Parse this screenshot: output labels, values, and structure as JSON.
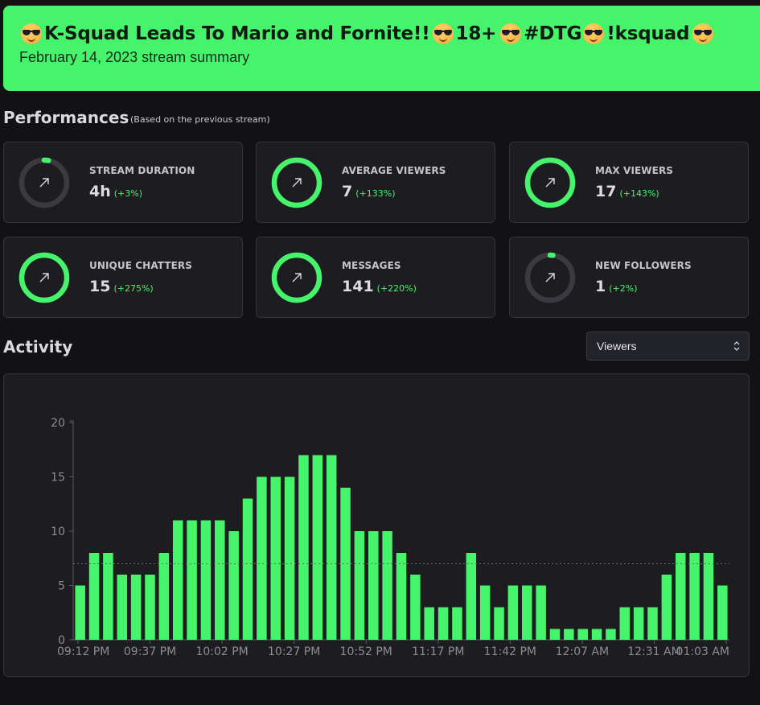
{
  "banner": {
    "title_parts": [
      "K-Squad Leads To Mario and Fornite!!",
      "18+",
      "#DTG",
      "!ksquad"
    ],
    "subtitle": "February 14, 2023 stream summary",
    "accent_color": "#45f46a",
    "emoji_icon": "sunglasses-face-emoji"
  },
  "performances": {
    "heading": "Performances",
    "note": "(Based on the previous stream)",
    "cards": [
      {
        "label": "STREAM DURATION",
        "value": "4h",
        "delta": "(+3%)",
        "ring_fill": 0.03,
        "icon": "arrow-up-right-icon"
      },
      {
        "label": "AVERAGE VIEWERS",
        "value": "7",
        "delta": "(+133%)",
        "ring_fill": 1.0,
        "icon": "arrow-up-right-icon"
      },
      {
        "label": "MAX VIEWERS",
        "value": "17",
        "delta": "(+143%)",
        "ring_fill": 1.0,
        "icon": "arrow-up-right-icon"
      },
      {
        "label": "UNIQUE CHATTERS",
        "value": "15",
        "delta": "(+275%)",
        "ring_fill": 1.0,
        "icon": "arrow-up-right-icon"
      },
      {
        "label": "MESSAGES",
        "value": "141",
        "delta": "(+220%)",
        "ring_fill": 1.0,
        "icon": "arrow-up-right-icon"
      },
      {
        "label": "NEW FOLLOWERS",
        "value": "1",
        "delta": "(+2%)",
        "ring_fill": 0.02,
        "icon": "arrow-up-right-icon"
      }
    ]
  },
  "activity": {
    "heading": "Activity",
    "select_value": "Viewers"
  },
  "chart_data": {
    "type": "bar",
    "title": "",
    "xlabel": "",
    "ylabel": "",
    "ylim": [
      0,
      20
    ],
    "yticks": [
      0,
      5,
      10,
      15,
      20
    ],
    "xtick_labels": [
      "09:12 PM",
      "09:37 PM",
      "10:02 PM",
      "10:27 PM",
      "10:52 PM",
      "11:17 PM",
      "11:42 PM",
      "12:07 AM",
      "12:31 AM",
      "01:03 AM"
    ],
    "values": [
      5,
      8,
      8,
      6,
      6,
      6,
      8,
      11,
      11,
      11,
      11,
      10,
      13,
      15,
      15,
      15,
      17,
      17,
      17,
      14,
      10,
      10,
      10,
      8,
      6,
      3,
      3,
      3,
      8,
      5,
      3,
      5,
      5,
      5,
      1,
      1,
      1,
      1,
      1,
      3,
      3,
      3,
      6,
      8,
      8,
      8,
      5
    ],
    "reference_line": 7,
    "bar_color": "#45f46a",
    "grid": false
  }
}
